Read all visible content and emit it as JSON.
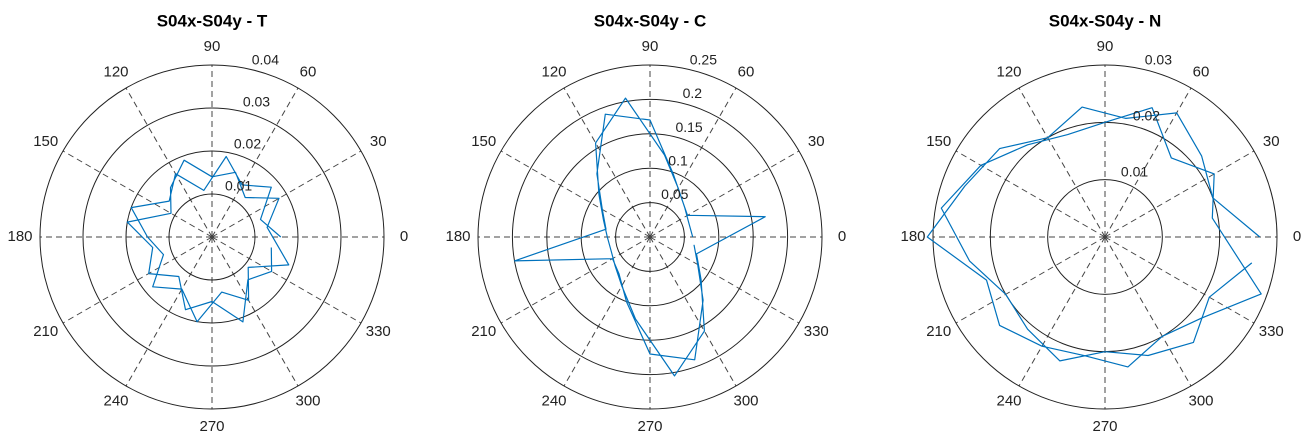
{
  "chart_data": [
    {
      "type": "polar",
      "title": "S04x-S04y - T",
      "rlim": [
        0,
        0.04
      ],
      "rticks": [
        0.01,
        0.02,
        0.03,
        0.04
      ],
      "thetaticks": [
        0,
        30,
        60,
        90,
        120,
        150,
        180,
        210,
        240,
        270,
        300,
        330
      ],
      "series": [
        {
          "color": "#0072bd",
          "theta": [
            0,
            20,
            40,
            60,
            80,
            100,
            120,
            140,
            160,
            180,
            200,
            220,
            240,
            260,
            280,
            300,
            320,
            340,
            10,
            30,
            50,
            70,
            90,
            110,
            130,
            150,
            170,
            190,
            210,
            230,
            250,
            270,
            290,
            310,
            330,
            350
          ],
          "r": [
            0.016,
            0.012,
            0.018,
            0.014,
            0.019,
            0.011,
            0.017,
            0.013,
            0.02,
            0.015,
            0.012,
            0.018,
            0.014,
            0.02,
            0.013,
            0.017,
            0.011,
            0.019,
            0.013,
            0.018,
            0.012,
            0.016,
            0.014,
            0.019,
            0.015,
            0.011,
            0.02,
            0.014,
            0.017,
            0.012,
            0.018,
            0.015,
            0.021,
            0.013,
            0.016,
            0.014
          ]
        }
      ]
    },
    {
      "type": "polar",
      "title": "S04x-S04y - C",
      "rlim": [
        0,
        0.25
      ],
      "rticks": [
        0.05,
        0.1,
        0.15,
        0.2,
        0.25
      ],
      "thetaticks": [
        0,
        30,
        60,
        90,
        120,
        150,
        180,
        210,
        240,
        270,
        300,
        330
      ],
      "series": [
        {
          "color": "#0072bd",
          "theta": [
            0,
            20,
            40,
            60,
            80,
            100,
            120,
            140,
            160,
            180,
            200,
            220,
            240,
            260,
            280,
            300,
            320,
            340,
            10,
            30,
            50,
            70,
            90,
            110,
            130,
            150,
            170,
            190,
            210,
            230,
            250,
            270,
            290,
            310,
            330,
            350
          ],
          "r": [
            0.062,
            0.06,
            0.066,
            0.082,
            0.121,
            0.205,
            0.158,
            0.097,
            0.072,
            0.062,
            0.06,
            0.066,
            0.082,
            0.121,
            0.205,
            0.158,
            0.097,
            0.072,
            0.17,
            0.063,
            0.072,
            0.098,
            0.17,
            0.19,
            0.12,
            0.08,
            0.065,
            0.2,
            0.063,
            0.07,
            0.1,
            0.17,
            0.19,
            0.12,
            0.08,
            0.065
          ]
        }
      ]
    },
    {
      "type": "polar",
      "title": "S04x-S04y - N",
      "rlim": [
        0,
        0.03
      ],
      "rticks": [
        0.01,
        0.02,
        0.03
      ],
      "thetaticks": [
        0,
        30,
        60,
        90,
        120,
        150,
        180,
        210,
        240,
        270,
        300,
        330
      ],
      "series": [
        {
          "color": "#0072bd",
          "theta": [
            0,
            20,
            40,
            60,
            80,
            100,
            120,
            140,
            160,
            180,
            200,
            220,
            240,
            260,
            280,
            300,
            320,
            340,
            10,
            30,
            50,
            70,
            90,
            110,
            130,
            150,
            170,
            190,
            210,
            230,
            250,
            270,
            290,
            310,
            330,
            350
          ],
          "r": [
            0.027,
            0.02,
            0.022,
            0.025,
            0.021,
            0.023,
            0.02,
            0.024,
            0.026,
            0.031,
            0.022,
            0.024,
            0.022,
            0.021,
            0.023,
            0.02,
            0.022,
            0.029,
            0.019,
            0.022,
            0.018,
            0.024,
            0.02,
            0.019,
            0.021,
            0.025,
            0.029,
            0.024,
            0.02,
            0.021,
            0.023,
            0.02,
            0.022,
            0.024,
            0.021,
            0.026
          ]
        }
      ]
    }
  ]
}
